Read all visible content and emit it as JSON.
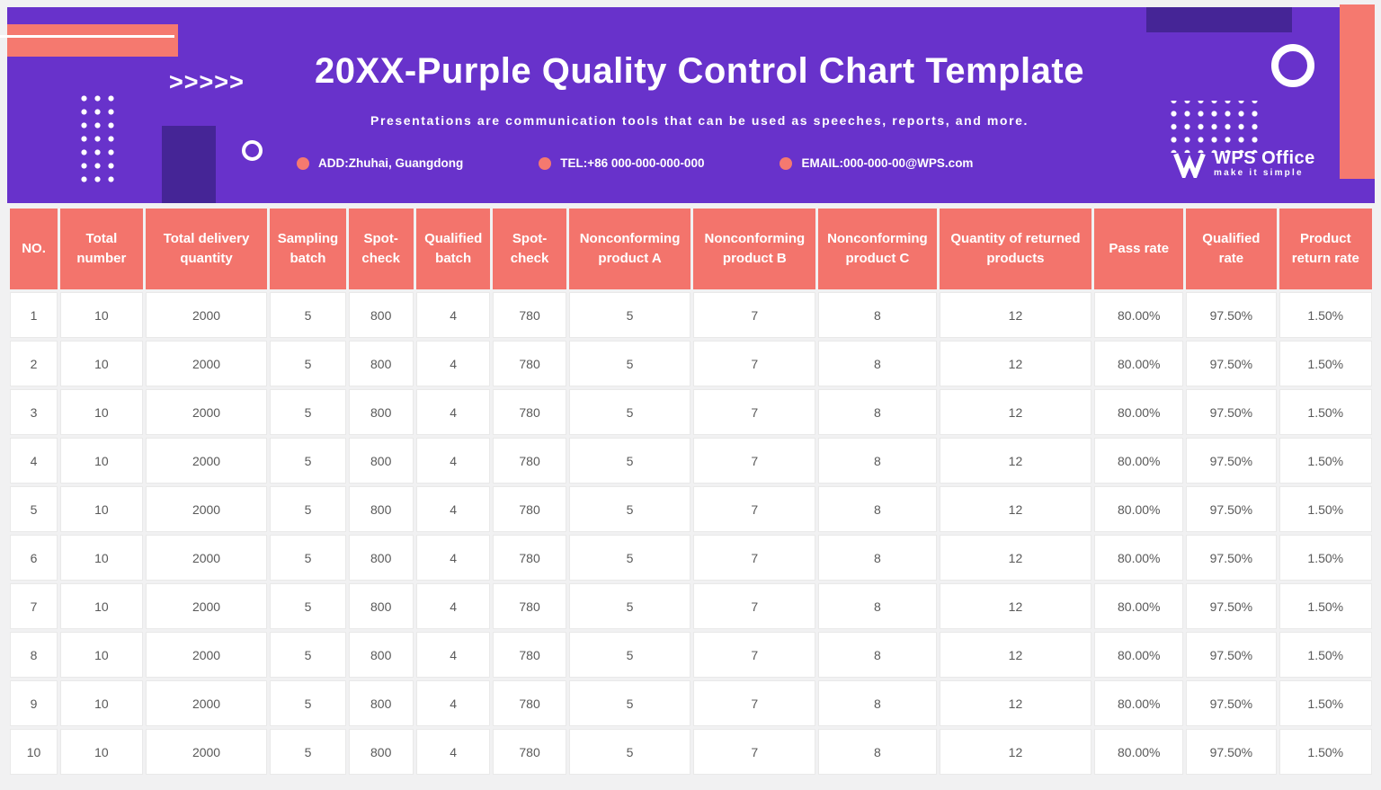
{
  "colors": {
    "purple": "#6832cb",
    "purple_dark": "#452596",
    "coral": "#f5796f",
    "header_bg": "#f3746c",
    "header_text": "#ffffff",
    "cell_text": "#595959",
    "cell_border": "#e9e9e9",
    "page_bg": "#f1f1f2",
    "white": "#ffffff"
  },
  "header": {
    "title": "20XX-Purple Quality Control Chart Template",
    "subtitle": "Presentations are communication tools that can be used as speeches, reports, and more.",
    "contacts": [
      {
        "label": "ADD:Zhuhai, Guangdong"
      },
      {
        "label": "TEL:+86 000-000-000-000"
      },
      {
        "label": "EMAIL:000-000-00@WPS.com"
      }
    ],
    "logo": {
      "brand": "WPS Office",
      "tagline": "make it simple"
    },
    "decorations": {
      "chevrons": ">>>>>"
    }
  },
  "table": {
    "columns": [
      "NO.",
      "Total number",
      "Total delivery quantity",
      "Sampling batch",
      "Spot-check",
      "Qualified batch",
      "Spot-check",
      "Nonconforming product A",
      "Nonconforming product B",
      "Nonconforming product C",
      "Quantity of returned products",
      "Pass rate",
      "Qualified rate",
      "Product return rate"
    ],
    "column_widths_percent": [
      3.6,
      6.2,
      9.2,
      5.7,
      4.9,
      5.6,
      5.5,
      9.2,
      9.2,
      8.9,
      11.5,
      6.7,
      6.8,
      7.0
    ],
    "rows": [
      [
        "1",
        "10",
        "2000",
        "5",
        "800",
        "4",
        "780",
        "5",
        "7",
        "8",
        "12",
        "80.00%",
        "97.50%",
        "1.50%"
      ],
      [
        "2",
        "10",
        "2000",
        "5",
        "800",
        "4",
        "780",
        "5",
        "7",
        "8",
        "12",
        "80.00%",
        "97.50%",
        "1.50%"
      ],
      [
        "3",
        "10",
        "2000",
        "5",
        "800",
        "4",
        "780",
        "5",
        "7",
        "8",
        "12",
        "80.00%",
        "97.50%",
        "1.50%"
      ],
      [
        "4",
        "10",
        "2000",
        "5",
        "800",
        "4",
        "780",
        "5",
        "7",
        "8",
        "12",
        "80.00%",
        "97.50%",
        "1.50%"
      ],
      [
        "5",
        "10",
        "2000",
        "5",
        "800",
        "4",
        "780",
        "5",
        "7",
        "8",
        "12",
        "80.00%",
        "97.50%",
        "1.50%"
      ],
      [
        "6",
        "10",
        "2000",
        "5",
        "800",
        "4",
        "780",
        "5",
        "7",
        "8",
        "12",
        "80.00%",
        "97.50%",
        "1.50%"
      ],
      [
        "7",
        "10",
        "2000",
        "5",
        "800",
        "4",
        "780",
        "5",
        "7",
        "8",
        "12",
        "80.00%",
        "97.50%",
        "1.50%"
      ],
      [
        "8",
        "10",
        "2000",
        "5",
        "800",
        "4",
        "780",
        "5",
        "7",
        "8",
        "12",
        "80.00%",
        "97.50%",
        "1.50%"
      ],
      [
        "9",
        "10",
        "2000",
        "5",
        "800",
        "4",
        "780",
        "5",
        "7",
        "8",
        "12",
        "80.00%",
        "97.50%",
        "1.50%"
      ],
      [
        "10",
        "10",
        "2000",
        "5",
        "800",
        "4",
        "780",
        "5",
        "7",
        "8",
        "12",
        "80.00%",
        "97.50%",
        "1.50%"
      ]
    ]
  }
}
